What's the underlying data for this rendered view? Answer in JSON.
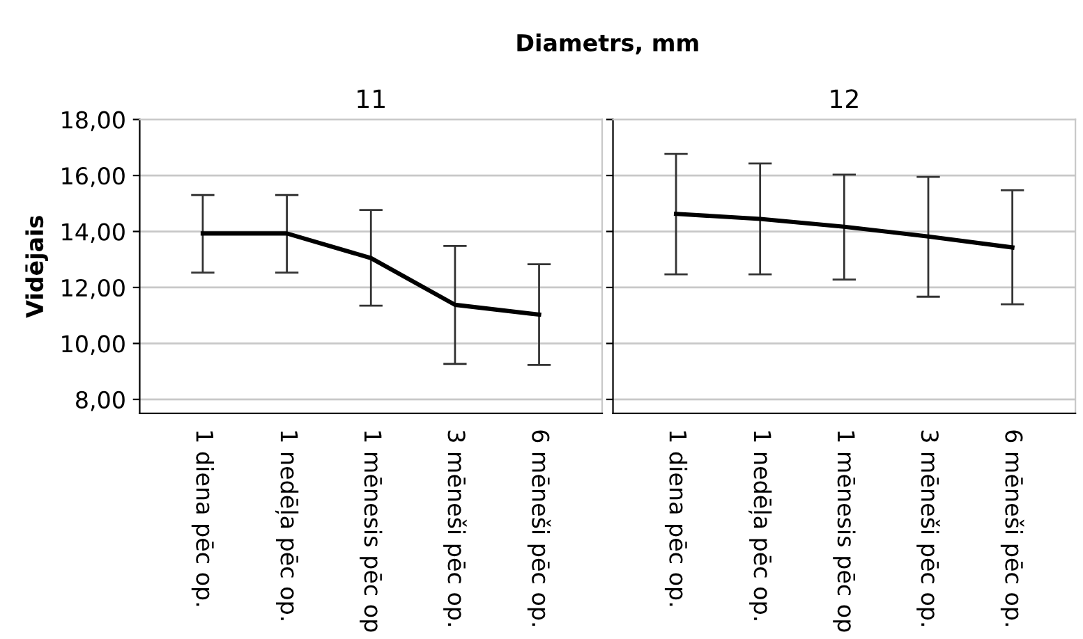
{
  "chart_data": [
    {
      "type": "line",
      "title": "11",
      "ylabel": "Vidējais",
      "annotations": [
        "Diametrs, mm"
      ],
      "categories": [
        "1 diena pēc op.",
        "1 nedēļa pēc op.",
        "1 mēnesis pēc op",
        "3 mēneši pēc op.",
        "6 mēneši pēc op."
      ],
      "series": [
        {
          "color": "#000000",
          "values": [
            13.93,
            13.93,
            13.05,
            11.38,
            11.03
          ],
          "errors": [
            [
              12.53,
              15.3
            ],
            [
              12.53,
              15.3
            ],
            [
              11.35,
              14.77
            ],
            [
              9.27,
              13.48
            ],
            [
              9.23,
              12.83
            ]
          ]
        }
      ],
      "ylim": [
        7.5,
        18.0
      ],
      "yticks": [
        {
          "value": 8,
          "label": "8,00"
        },
        {
          "value": 10,
          "label": "10,00"
        },
        {
          "value": 12,
          "label": "12,00"
        },
        {
          "value": 14,
          "label": "14,00"
        },
        {
          "value": 16,
          "label": "16,00"
        },
        {
          "value": 18,
          "label": "18,00"
        }
      ],
      "grid": "y",
      "marker": "none",
      "line_style": "solid"
    },
    {
      "type": "line",
      "title": "12",
      "categories": [
        "1 diena pēc op.",
        "1 nedēļa pēc op.",
        "1 mēnesis pēc op",
        "3 mēneši pēc op.",
        "6 mēneši pēc op."
      ],
      "series": [
        {
          "color": "#000000",
          "values": [
            14.63,
            14.45,
            14.17,
            13.82,
            13.43
          ],
          "errors": [
            [
              12.47,
              16.77
            ],
            [
              12.47,
              16.43
            ],
            [
              12.28,
              16.03
            ],
            [
              11.67,
              15.95
            ],
            [
              11.4,
              15.47
            ]
          ]
        }
      ],
      "ylim": [
        7.5,
        18.0
      ],
      "yticks": [
        {
          "value": 8,
          "label": null
        },
        {
          "value": 10,
          "label": null
        },
        {
          "value": 12,
          "label": null
        },
        {
          "value": 14,
          "label": null
        },
        {
          "value": 16,
          "label": null
        },
        {
          "value": 18,
          "label": null
        }
      ],
      "tick_labels": "x",
      "grid": "y",
      "marker": "none",
      "line_style": "solid"
    }
  ]
}
